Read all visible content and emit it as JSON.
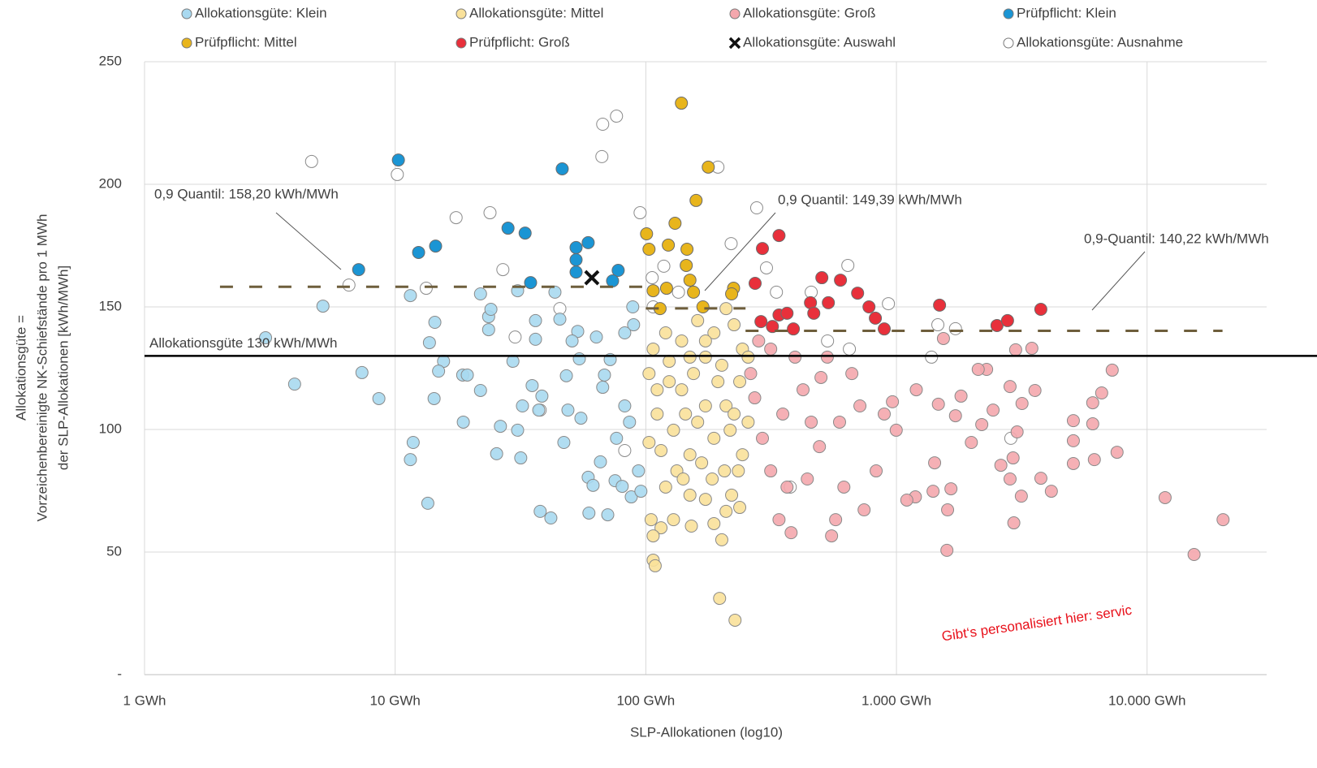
{
  "chart_data": {
    "type": "scatter",
    "x_label": "SLP-Allokationen (log10)",
    "y_label": [
      "Allokationsgüte =",
      "Vorzeichenbereinigte NK-Schiefstände pro 1 MWh",
      "der SLP-Allokationen [kWh/MWh]"
    ],
    "x_scale": "log",
    "xlim": [
      1,
      30000
    ],
    "ylim": [
      0,
      250
    ],
    "xticks": [
      {
        "value": 1,
        "label": "1 GWh"
      },
      {
        "value": 10,
        "label": "10 GWh"
      },
      {
        "value": 100,
        "label": "100 GWh"
      },
      {
        "value": 1000,
        "label": "1.000 GWh"
      },
      {
        "value": 10000,
        "label": "10.000 GWh"
      }
    ],
    "yticks": [
      {
        "value": 0,
        "label": "-"
      },
      50,
      100,
      150,
      200,
      250
    ],
    "grid": true,
    "reference_line": {
      "label": "Allokationsgüte 130 kWh/MWh",
      "value": 130,
      "color": "#000000"
    },
    "quantile_lines": [
      {
        "label": "0,9 Quantil: 158,20 kWh/MWh",
        "value": 158.2,
        "x": [
          2,
          100
        ]
      },
      {
        "label": "0,9 Quantil: 149,39 kWh/MWh",
        "value": 149.39,
        "x": [
          100,
          250
        ]
      },
      {
        "label": "0,9-Quantil: 140,22 kWh/MWh",
        "value": 140.22,
        "x": [
          250,
          20000
        ]
      }
    ],
    "watermark": "Gibt‘s personalisiert hier: servic",
    "series": [
      {
        "name": "Allokationsgüte: Klein",
        "color": "#a9d9f0",
        "marker": "circle",
        "x": [
          3.04,
          3.97,
          5.15,
          7.37,
          8.61,
          11.5,
          11.8,
          11.5,
          13.5,
          14.3,
          13.7,
          14.4,
          15.6,
          14.9,
          18.6,
          19.4,
          18.7,
          21.9,
          23.6,
          24.1,
          23.6,
          21.9,
          26.3,
          25.4,
          31.7,
          30.8,
          32.2,
          30.8,
          29.5,
          35.2,
          38.5,
          37.9,
          41.8,
          36.3,
          43.4,
          45.4,
          37.4,
          47.1,
          48.2,
          53.5,
          50.8,
          54.3,
          58.9,
          61.6,
          59.3,
          70.5,
          65.9,
          75.4,
          80.5,
          87.5,
          72.1,
          68.4,
          63.5,
          82.4,
          86.1,
          89.4,
          88.7,
          82.4,
          67.3,
          55.1,
          48.9,
          76.4,
          95.6,
          93.5,
          36.3
        ],
        "values": [
          137.4,
          118.5,
          150.3,
          123.2,
          112.6,
          154.6,
          94.7,
          87.7,
          69.9,
          112.6,
          135.4,
          143.7,
          127.8,
          123.8,
          122.2,
          122.2,
          103,
          155.3,
          146,
          149,
          140.7,
          115.9,
          101.3,
          90.1,
          88.4,
          99.7,
          109.6,
          156.6,
          127.8,
          117.9,
          113.6,
          66.6,
          63.9,
          144.4,
          156,
          145,
          107.9,
          94.7,
          121.9,
          140,
          136.1,
          128.8,
          80.5,
          77.2,
          65.9,
          65.2,
          86.8,
          79.1,
          76.8,
          72.5,
          128.5,
          122.2,
          137.7,
          109.6,
          103,
          142.7,
          150,
          139.4,
          117.2,
          104.6,
          107.9,
          96.4,
          74.8,
          83.1,
          136.8
        ]
      },
      {
        "name": "Allokationsgüte: Mittel",
        "color": "#f9e19a",
        "marker": "circle",
        "x": [
          107,
          109,
          105,
          115,
          152,
          201,
          197,
          227,
          107,
          120,
          133,
          141,
          150,
          167,
          184,
          206,
          220,
          237,
          234,
          243,
          103,
          111,
          124,
          139,
          155,
          173,
          194,
          209,
          217,
          187,
          161,
          144,
          129,
          115,
          103,
          107,
          120,
          139,
          161,
          187,
          225,
          243,
          173,
          209,
          150,
          124,
          111,
          201,
          237,
          225,
          173,
          150,
          173,
          209,
          187,
          129,
          256,
          256
        ],
        "values": [
          46.7,
          44.4,
          63.2,
          59.9,
          60.6,
          55,
          31.1,
          22.2,
          56.6,
          76.5,
          83.1,
          79.8,
          73.2,
          86.4,
          79.8,
          83.1,
          73.2,
          68.2,
          83.1,
          89.7,
          94.7,
          106.3,
          119.5,
          116.2,
          122.8,
          129.5,
          119.5,
          109.6,
          99.7,
          96.4,
          103,
          106.3,
          99.7,
          91.4,
          122.8,
          132.8,
          139.4,
          136.1,
          144.4,
          139.4,
          142.7,
          132.8,
          136.1,
          149.3,
          129.5,
          127.8,
          116.2,
          126.2,
          119.5,
          106.3,
          109.6,
          89.7,
          71.5,
          66.6,
          61.6,
          63.2,
          103,
          129.5
        ]
      },
      {
        "name": "Allokationsgüte: Groß",
        "color": "#f4a7ad",
        "marker": "circle",
        "x": [
          20100,
          15400,
          11800,
          7590,
          7260,
          6590,
          6070,
          6070,
          6160,
          5080,
          5080,
          5080,
          4150,
          3770,
          3570,
          2940,
          3150,
          2920,
          2840,
          3030,
          3170,
          2840,
          2610,
          2990,
          3470,
          2290,
          2120,
          1990,
          2190,
          2430,
          1810,
          1720,
          1470,
          1590,
          1600,
          1650,
          1400,
          1420,
          1540,
          1200,
          1190,
          1100,
          998,
          964,
          894,
          830,
          743,
          617,
          572,
          551,
          493,
          457,
          424,
          394,
          366,
          340,
          380,
          315,
          292,
          272,
          262,
          282,
          315,
          352,
          530,
          664,
          715,
          593,
          441,
          500
        ],
        "values": [
          63.2,
          49,
          72.2,
          90.7,
          124.2,
          114.9,
          110.9,
          102.3,
          87.7,
          103.6,
          95.4,
          86.1,
          74.8,
          80.1,
          115.9,
          61.9,
          72.8,
          88.4,
          117.5,
          99,
          110.6,
          79.8,
          85.4,
          132.5,
          133.1,
          124.5,
          124.5,
          94.7,
          102,
          107.9,
          113.6,
          105.6,
          110.3,
          50.7,
          67.2,
          75.8,
          74.8,
          86.4,
          137.1,
          116.2,
          72.5,
          71.2,
          99.7,
          111.3,
          106.3,
          83.1,
          67.2,
          76.5,
          63.2,
          56.6,
          93,
          103,
          116.2,
          129.5,
          76.5,
          63.2,
          57.9,
          83.1,
          96.4,
          112.9,
          122.8,
          136.1,
          132.8,
          106.3,
          129.5,
          122.8,
          109.6,
          103,
          79.8,
          121.2
        ]
      },
      {
        "name": "Prüfpflicht: Klein",
        "color": "#1b95d4",
        "marker": "circle",
        "x": [
          7.15,
          10.3,
          12.4,
          14.5,
          28.2,
          33,
          34.7,
          46.4,
          52.7,
          58.9,
          52.7,
          52.7,
          77.6,
          73.7
        ],
        "values": [
          165.2,
          209.9,
          172.2,
          174.8,
          182.1,
          180.1,
          159.9,
          206.3,
          174.2,
          176.2,
          169.2,
          164.2,
          164.9,
          160.6
        ]
      },
      {
        "name": "Prüfpflicht:  Mittel",
        "color": "#e8b51c",
        "marker": "circle",
        "x": [
          138.7,
          177.5,
          158.7,
          130.8,
          100.7,
          103,
          123,
          146,
          145,
          150,
          121,
          107,
          114,
          169,
          155,
          224,
          220
        ],
        "values": [
          233.1,
          207,
          193.4,
          184.1,
          179.8,
          173.5,
          175.2,
          173.5,
          166.9,
          160.9,
          157.6,
          156.6,
          149.3,
          150,
          156,
          157.6,
          155.3
        ]
      },
      {
        "name": "Prüfpflicht:  Groß",
        "color": "#e8303b",
        "marker": "circle",
        "x": [
          292,
          340,
          273,
          288,
          320,
          340,
          366,
          388,
          454,
          504,
          535,
          598,
          468,
          700,
          777,
          824,
          894,
          1486,
          2519,
          2775,
          3768
        ],
        "values": [
          173.8,
          179.1,
          159.6,
          144,
          142,
          146.7,
          147.4,
          141,
          151.7,
          161.9,
          151.7,
          160.9,
          147.4,
          155.6,
          150,
          145.4,
          141,
          150.7,
          142.4,
          144.4,
          149
        ]
      },
      {
        "name": "Allokationsgüte: Auswahl",
        "color": "#111111",
        "marker": "x",
        "x": [
          60.9
        ],
        "values": [
          161.9
        ]
      },
      {
        "name": "Allokationsgüte: Ausnahme",
        "color": "#ffffff",
        "marker": "circle",
        "x": [
          4.64,
          10.2,
          17.5,
          23.9,
          26.9,
          6.54,
          13.3,
          67.3,
          76.4,
          66.8,
          94.9,
          194,
          219,
          277,
          303,
          332,
          640,
          929,
          1463,
          1720,
          2860,
          106,
          118,
          107,
          135,
          37.9,
          30.1,
          82.4,
          377,
          649,
          1380,
          45.4,
          457,
          531
        ],
        "values": [
          209.3,
          204,
          186.4,
          188.4,
          165.2,
          158.9,
          157.6,
          224.5,
          227.8,
          211.3,
          188.4,
          207,
          175.8,
          190.4,
          165.9,
          156,
          166.9,
          151.3,
          142.7,
          141.1,
          96.4,
          161.9,
          166.6,
          150,
          156,
          107.9,
          137.7,
          91.4,
          76.5,
          132.8,
          129.5,
          149.3,
          156,
          136.1
        ]
      }
    ]
  }
}
